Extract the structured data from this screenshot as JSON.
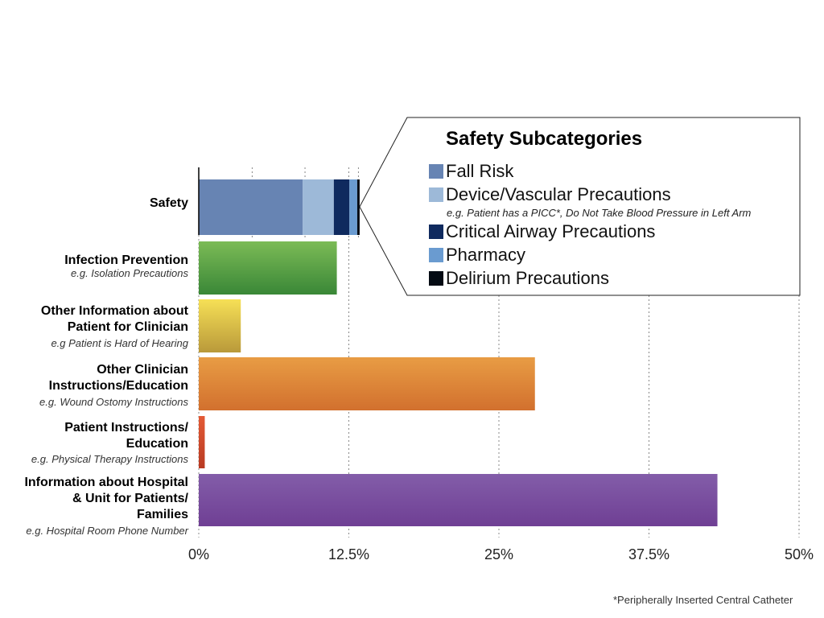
{
  "chart_data": {
    "type": "bar",
    "orientation": "horizontal",
    "stacked_first_bar": true,
    "title": "",
    "xlabel": "",
    "ylabel": "",
    "xlim": [
      0,
      50
    ],
    "x_ticks": [
      0,
      12.5,
      25,
      37.5,
      50
    ],
    "x_tick_labels": [
      "0%",
      "12.5%",
      "25%",
      "37.5%",
      "50%"
    ],
    "grid": "vertical dotted",
    "categories": [
      {
        "label_lines": [
          "Safety"
        ],
        "example": "",
        "value": 13.4,
        "color_top": "#6784b3",
        "color_bottom": "#6784b3",
        "segments": [
          {
            "name": "Fall Risk",
            "value": 8.65,
            "color": "#6784b3"
          },
          {
            "name": "Device/Vascular Precautions",
            "value": 2.6,
            "color": "#9db9d8"
          },
          {
            "name": "Critical Airway Precautions",
            "value": 1.3,
            "color": "#0f2a5e"
          },
          {
            "name": "Pharmacy",
            "value": 0.65,
            "color": "#6a9bd0"
          },
          {
            "name": "Delirium Precautions",
            "value": 0.2,
            "color": "#040b14"
          }
        ]
      },
      {
        "label_lines": [
          "Infection Prevention"
        ],
        "example": "e.g. Isolation Precautions",
        "value": 11.5,
        "color_top": "#7cbb56",
        "color_bottom": "#3a8737"
      },
      {
        "label_lines": [
          "Other Information about",
          "Patient for Clinician"
        ],
        "example": "e.g Patient is Hard of Hearing",
        "value": 3.5,
        "color_top": "#f6e056",
        "color_bottom": "#b9993a"
      },
      {
        "label_lines": [
          "Other Clinician",
          "Instructions/Education"
        ],
        "example": "e.g. Wound Ostomy Instructions",
        "value": 28.0,
        "color_top": "#e89c44",
        "color_bottom": "#d2702e"
      },
      {
        "label_lines": [
          "Patient Instructions/",
          "Education"
        ],
        "example": "e.g. Physical Therapy Instructions",
        "value": 0.5,
        "color_top": "#e45a35",
        "color_bottom": "#b83a22"
      },
      {
        "label_lines": [
          "Information about Hospital",
          "& Unit for Patients/",
          "Families"
        ],
        "example": "e.g. Hospital Room Phone Number",
        "value": 43.2,
        "color_top": "#835da9",
        "color_bottom": "#6f3f94"
      }
    ],
    "legend": {
      "title": "Safety Subcategories",
      "placement": "top-right callout",
      "items": [
        {
          "label": "Fall Risk",
          "color": "#6784b3",
          "note": ""
        },
        {
          "label": "Device/Vascular Precautions",
          "color": "#9db9d8",
          "note": "e.g. Patient has a PICC*, Do Not Take Blood Pressure in Left Arm"
        },
        {
          "label": "Critical Airway Precautions",
          "color": "#0f2a5e",
          "note": ""
        },
        {
          "label": "Pharmacy",
          "color": "#6a9bd0",
          "note": ""
        },
        {
          "label": "Delirium Precautions",
          "color": "#040b14",
          "note": ""
        }
      ]
    },
    "footnote": "*Peripherally Inserted Central Catheter"
  }
}
